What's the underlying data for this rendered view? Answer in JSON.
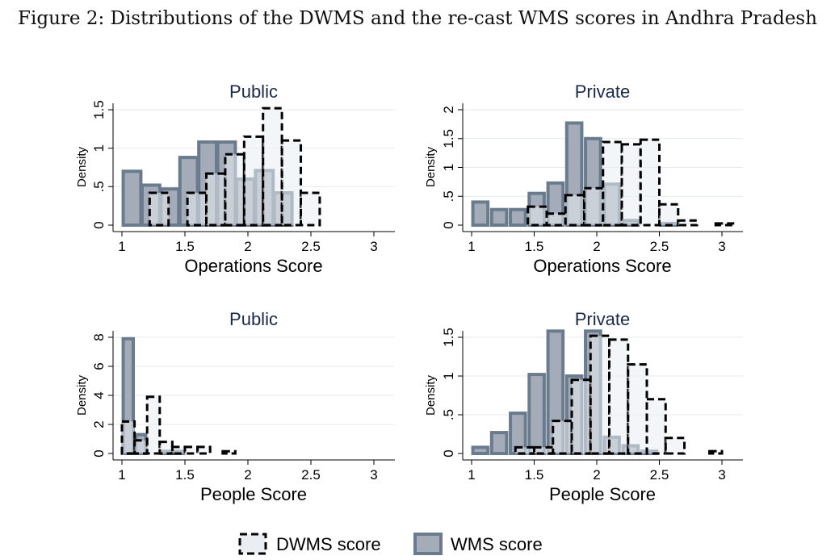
{
  "figure_title": "Figure 2: Distributions of the DWMS and the re-cast WMS scores in Andhra Pradesh",
  "legend": [
    {
      "label": "DWMS score",
      "style": "dashed"
    },
    {
      "label": "WMS score",
      "style": "solid"
    }
  ],
  "colors": {
    "wms_fill": "#a3acb8",
    "wms_stroke": "#6b7b8e",
    "dwms_fill": "#eaeef3",
    "dwms_stroke": "#000000",
    "panel_title": "#1a2a48",
    "grid": "#e6eaee"
  },
  "chart_data": [
    {
      "type": "bar",
      "title": "Public",
      "xlabel": "Operations Score",
      "ylabel": "Density",
      "xlim": [
        1,
        3
      ],
      "ylim": [
        0,
        1.5
      ],
      "xticks": [
        "1",
        "1.5",
        "2",
        "2.5",
        "3"
      ],
      "xtick_values": [
        1,
        1.5,
        2,
        2.5,
        3
      ],
      "yticks": [
        "0",
        ".5",
        "1",
        "1.5"
      ],
      "ytick_values": [
        0,
        0.5,
        1,
        1.5
      ],
      "grid": true,
      "series": [
        {
          "name": "DWMS score",
          "bins": [
            [
              1.22,
              1.37,
              0.42
            ],
            [
              1.52,
              1.67,
              0.42
            ],
            [
              1.67,
              1.82,
              0.67
            ],
            [
              1.82,
              1.97,
              0.92
            ],
            [
              1.97,
              2.12,
              1.15
            ],
            [
              2.12,
              2.27,
              1.52
            ],
            [
              2.27,
              2.42,
              1.1
            ],
            [
              2.42,
              2.57,
              0.42
            ]
          ]
        },
        {
          "name": "WMS score",
          "bins": [
            [
              1.01,
              1.15,
              0.7
            ],
            [
              1.16,
              1.3,
              0.52
            ],
            [
              1.31,
              1.45,
              0.47
            ],
            [
              1.46,
              1.6,
              0.88
            ],
            [
              1.61,
              1.75,
              1.08
            ],
            [
              1.76,
              1.9,
              1.08
            ],
            [
              1.91,
              2.05,
              0.6
            ],
            [
              2.06,
              2.2,
              0.71
            ],
            [
              2.21,
              2.35,
              0.42
            ]
          ]
        }
      ]
    },
    {
      "type": "bar",
      "title": "Private",
      "xlabel": "Operations Score",
      "ylabel": "Density",
      "xlim": [
        1,
        3
      ],
      "ylim": [
        0,
        2
      ],
      "xticks": [
        "1",
        "1.5",
        "2",
        "2.5",
        "3"
      ],
      "xtick_values": [
        1,
        1.5,
        2,
        2.5,
        3
      ],
      "yticks": [
        "0",
        ".5",
        "1",
        "1.5",
        "2"
      ],
      "ytick_values": [
        0,
        0.5,
        1,
        1.5,
        2
      ],
      "grid": true,
      "series": [
        {
          "name": "DWMS score",
          "bins": [
            [
              1.45,
              1.6,
              0.32
            ],
            [
              1.6,
              1.75,
              0.2
            ],
            [
              1.75,
              1.9,
              0.52
            ],
            [
              1.9,
              2.05,
              0.64
            ],
            [
              2.05,
              2.2,
              1.44
            ],
            [
              2.2,
              2.35,
              1.4
            ],
            [
              2.35,
              2.5,
              1.48
            ],
            [
              2.5,
              2.65,
              0.36
            ],
            [
              2.65,
              2.8,
              0.08
            ],
            [
              2.95,
              3.1,
              0.03
            ]
          ]
        },
        {
          "name": "WMS score",
          "bins": [
            [
              1.01,
              1.13,
              0.4
            ],
            [
              1.16,
              1.28,
              0.27
            ],
            [
              1.31,
              1.43,
              0.27
            ],
            [
              1.46,
              1.58,
              0.55
            ],
            [
              1.61,
              1.73,
              0.73
            ],
            [
              1.76,
              1.88,
              1.77
            ],
            [
              1.91,
              2.03,
              1.5
            ],
            [
              2.06,
              2.18,
              0.71
            ],
            [
              2.21,
              2.33,
              0.08
            ],
            [
              2.51,
              2.63,
              0.03
            ]
          ]
        }
      ]
    },
    {
      "type": "bar",
      "title": "Public",
      "xlabel": "People Score",
      "ylabel": "Density",
      "xlim": [
        1,
        3
      ],
      "ylim": [
        0,
        8
      ],
      "xticks": [
        "1",
        "1.5",
        "2",
        "2.5",
        "3"
      ],
      "xtick_values": [
        1,
        1.5,
        2,
        2.5,
        3
      ],
      "yticks": [
        "0",
        "2",
        "4",
        "6",
        "8"
      ],
      "ytick_values": [
        0,
        2,
        4,
        6,
        8
      ],
      "grid": true,
      "series": [
        {
          "name": "DWMS score",
          "bins": [
            [
              1.0,
              1.1,
              2.2
            ],
            [
              1.1,
              1.2,
              0.9
            ],
            [
              1.2,
              1.3,
              3.9
            ],
            [
              1.3,
              1.4,
              0.8
            ],
            [
              1.4,
              1.5,
              0.45
            ],
            [
              1.5,
              1.6,
              0.45
            ],
            [
              1.6,
              1.7,
              0.45
            ],
            [
              1.8,
              1.9,
              0.15
            ]
          ]
        },
        {
          "name": "WMS score",
          "bins": [
            [
              1.01,
              1.09,
              7.9
            ],
            [
              1.11,
              1.19,
              1.3
            ],
            [
              1.31,
              1.39,
              0.15
            ],
            [
              1.41,
              1.49,
              0.15
            ]
          ]
        }
      ]
    },
    {
      "type": "bar",
      "title": "Private",
      "xlabel": "People Score",
      "ylabel": "Density",
      "xlim": [
        1,
        3
      ],
      "ylim": [
        0,
        1.5
      ],
      "xticks": [
        "1",
        "1.5",
        "2",
        "2.5",
        "3"
      ],
      "xtick_values": [
        1,
        1.5,
        2,
        2.5,
        3
      ],
      "yticks": [
        "0",
        ".5",
        "1",
        "1.5"
      ],
      "ytick_values": [
        0,
        0.5,
        1,
        1.5
      ],
      "grid": true,
      "series": [
        {
          "name": "DWMS score",
          "bins": [
            [
              1.35,
              1.5,
              0.08
            ],
            [
              1.5,
              1.65,
              0.08
            ],
            [
              1.65,
              1.8,
              0.42
            ],
            [
              1.8,
              1.95,
              0.95
            ],
            [
              1.95,
              2.1,
              1.52
            ],
            [
              2.1,
              2.25,
              1.47
            ],
            [
              2.25,
              2.4,
              1.15
            ],
            [
              2.4,
              2.55,
              0.7
            ],
            [
              2.55,
              2.7,
              0.2
            ],
            [
              2.9,
              3.0,
              0.03
            ]
          ]
        },
        {
          "name": "WMS score",
          "bins": [
            [
              1.01,
              1.13,
              0.08
            ],
            [
              1.16,
              1.28,
              0.27
            ],
            [
              1.31,
              1.43,
              0.52
            ],
            [
              1.46,
              1.58,
              1.02
            ],
            [
              1.61,
              1.73,
              1.58
            ],
            [
              1.76,
              1.88,
              1.0
            ],
            [
              1.91,
              2.03,
              1.58
            ],
            [
              2.06,
              2.18,
              0.21
            ],
            [
              2.21,
              2.33,
              0.1
            ],
            [
              2.36,
              2.48,
              0.03
            ]
          ]
        }
      ]
    }
  ]
}
